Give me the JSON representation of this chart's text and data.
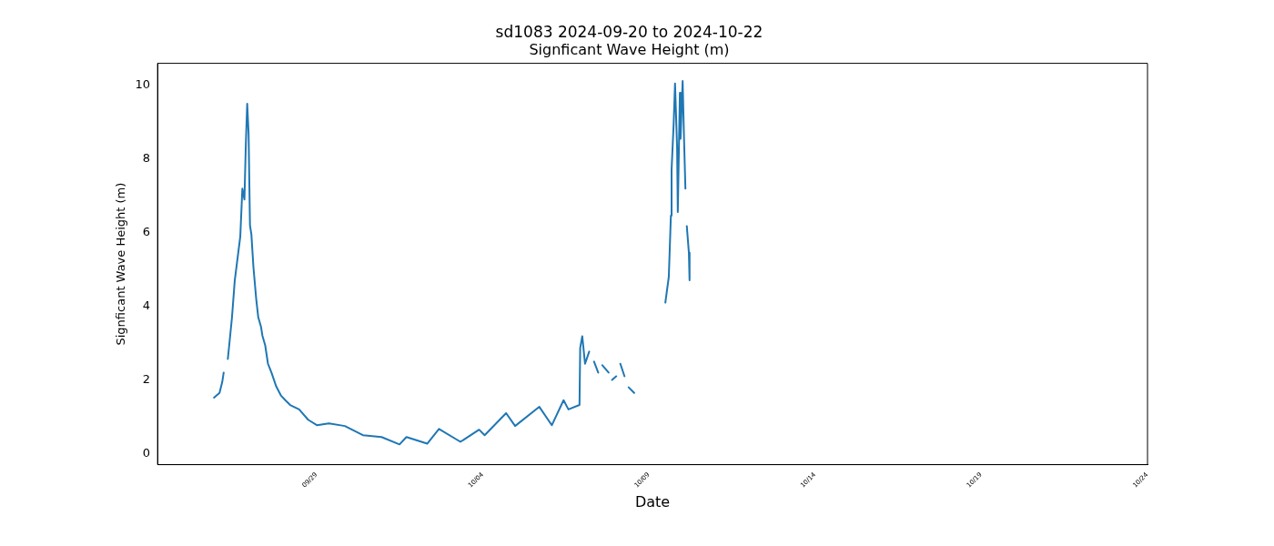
{
  "chart_data": {
    "type": "line",
    "title": "sd1083 2024-09-20 to 2024-10-22",
    "subtitle": "Signficant Wave Height (m)",
    "xlabel": "Date",
    "ylabel": "Signficant Wave Height (m)",
    "x": [
      "2024-09-25T22:00",
      "2024-09-26T02:00",
      "2024-09-26T04:00",
      "2024-09-26T05:00",
      "2024-09-26T06:30",
      "2024-09-26T08:00",
      "2024-09-26T09:00",
      "2024-09-26T11:00",
      "2024-09-26T13:00",
      "2024-09-26T15:00",
      "2024-09-26T17:00",
      "2024-09-26T18:30",
      "2024-09-26T20:00",
      "2024-09-26T21:00",
      "2024-09-26T22:00",
      "2024-09-26T23:00",
      "2024-09-27T00:00",
      "2024-09-27T01:00",
      "2024-09-27T02:30",
      "2024-09-27T04:30",
      "2024-09-27T06:00",
      "2024-09-27T08:00",
      "2024-09-27T09:00",
      "2024-09-27T11:00",
      "2024-09-27T13:00",
      "2024-09-27T15:30",
      "2024-09-27T19:00",
      "2024-09-27T22:30",
      "2024-09-28T01:30",
      "2024-09-28T05:00",
      "2024-09-28T11:30",
      "2024-09-28T18:00",
      "2024-09-29T00:30",
      "2024-09-29T09:00",
      "2024-09-29T20:30",
      "2024-09-30T09:30",
      "2024-09-30T23:00",
      "2024-10-01T12:00",
      "2024-10-01T17:00",
      "2024-10-02T08:00",
      "2024-10-02T16:30",
      "2024-10-03T08:00",
      "2024-10-03T21:30",
      "2024-10-04T01:30",
      "2024-10-04T17:00",
      "2024-10-04T23:30",
      "2024-10-05T17:00",
      "2024-10-06T02:00",
      "2024-10-06T10:30",
      "2024-10-06T14:00",
      "2024-10-06T22:00",
      "2024-10-06T22:30",
      "2024-10-07T00:00",
      "2024-10-07T02:00",
      "2024-10-07T05:00",
      "2024-10-07T07:00",
      "2024-10-07T08:30",
      "2024-10-07T11:30",
      "2024-10-07T14:00",
      "2024-10-07T14:30",
      "2024-10-07T19:00",
      "2024-10-07T20:00",
      "2024-10-07T21:30",
      "2024-10-08T00:30",
      "2024-10-08T02:00",
      "2024-10-08T03:30",
      "2024-10-08T06:30",
      "2024-10-08T08:00",
      "2024-10-08T09:30",
      "2024-10-08T13:30",
      "2024-10-09T00:00",
      "2024-10-09T12:00",
      "2024-10-09T14:30",
      "2024-10-09T16:00",
      "2024-10-09T16:30",
      "2024-10-09T18:00",
      "2024-10-09T19:00",
      "2024-10-09T20:30",
      "2024-10-09T21:00",
      "2024-10-09T22:30",
      "2024-10-09T23:00",
      "2024-10-10T00:30",
      "2024-10-10T01:30",
      "2024-10-10T02:30",
      "2024-10-10T03:00",
      "2024-10-10T03:30",
      "2024-10-10T05:00",
      "2024-10-10T05:30"
    ],
    "series": [
      {
        "color": "#1f77b4",
        "values": [
          1.52,
          1.65,
          1.95,
          2.2,
          null,
          2.57,
          2.94,
          3.7,
          4.7,
          5.3,
          5.9,
          7.2,
          6.9,
          8.4,
          9.5,
          8.7,
          6.2,
          5.96,
          5.06,
          4.2,
          3.7,
          3.44,
          3.2,
          2.94,
          2.44,
          2.2,
          1.82,
          1.57,
          1.45,
          1.32,
          1.2,
          0.92,
          0.77,
          0.82,
          0.75,
          0.5,
          0.45,
          0.25,
          0.45,
          0.27,
          0.67,
          0.32,
          0.65,
          0.5,
          1.1,
          0.75,
          1.27,
          0.77,
          1.45,
          1.2,
          1.32,
          2.87,
          3.19,
          2.44,
          2.77,
          null,
          2.5,
          2.2,
          null,
          2.4,
          2.2,
          null,
          2.0,
          2.1,
          null,
          2.44,
          2.1,
          null,
          1.8,
          1.65,
          null,
          4.1,
          4.8,
          6.46,
          7.7,
          8.95,
          10.05,
          8.3,
          6.56,
          9.8,
          8.55,
          10.12,
          8.55,
          7.2,
          null,
          6.18,
          5.46,
          4.71
        ]
      }
    ],
    "xlim": [
      "2024-09-24T05:15",
      "2024-10-24T00:15"
    ],
    "xticks": [
      {
        "value": "2024-09-29",
        "label": "09/29"
      },
      {
        "value": "2024-10-04",
        "label": "10/04"
      },
      {
        "value": "2024-10-09",
        "label": "10/09"
      },
      {
        "value": "2024-10-14",
        "label": "10/14"
      },
      {
        "value": "2024-10-19",
        "label": "10/19"
      },
      {
        "value": "2024-10-24",
        "label": "10/24"
      }
    ],
    "ylim": [
      -0.3,
      10.6
    ],
    "yticks": [
      0,
      2,
      4,
      6,
      8,
      10
    ],
    "grid": false,
    "legend": false,
    "marker": "none",
    "line_style": "solid"
  }
}
